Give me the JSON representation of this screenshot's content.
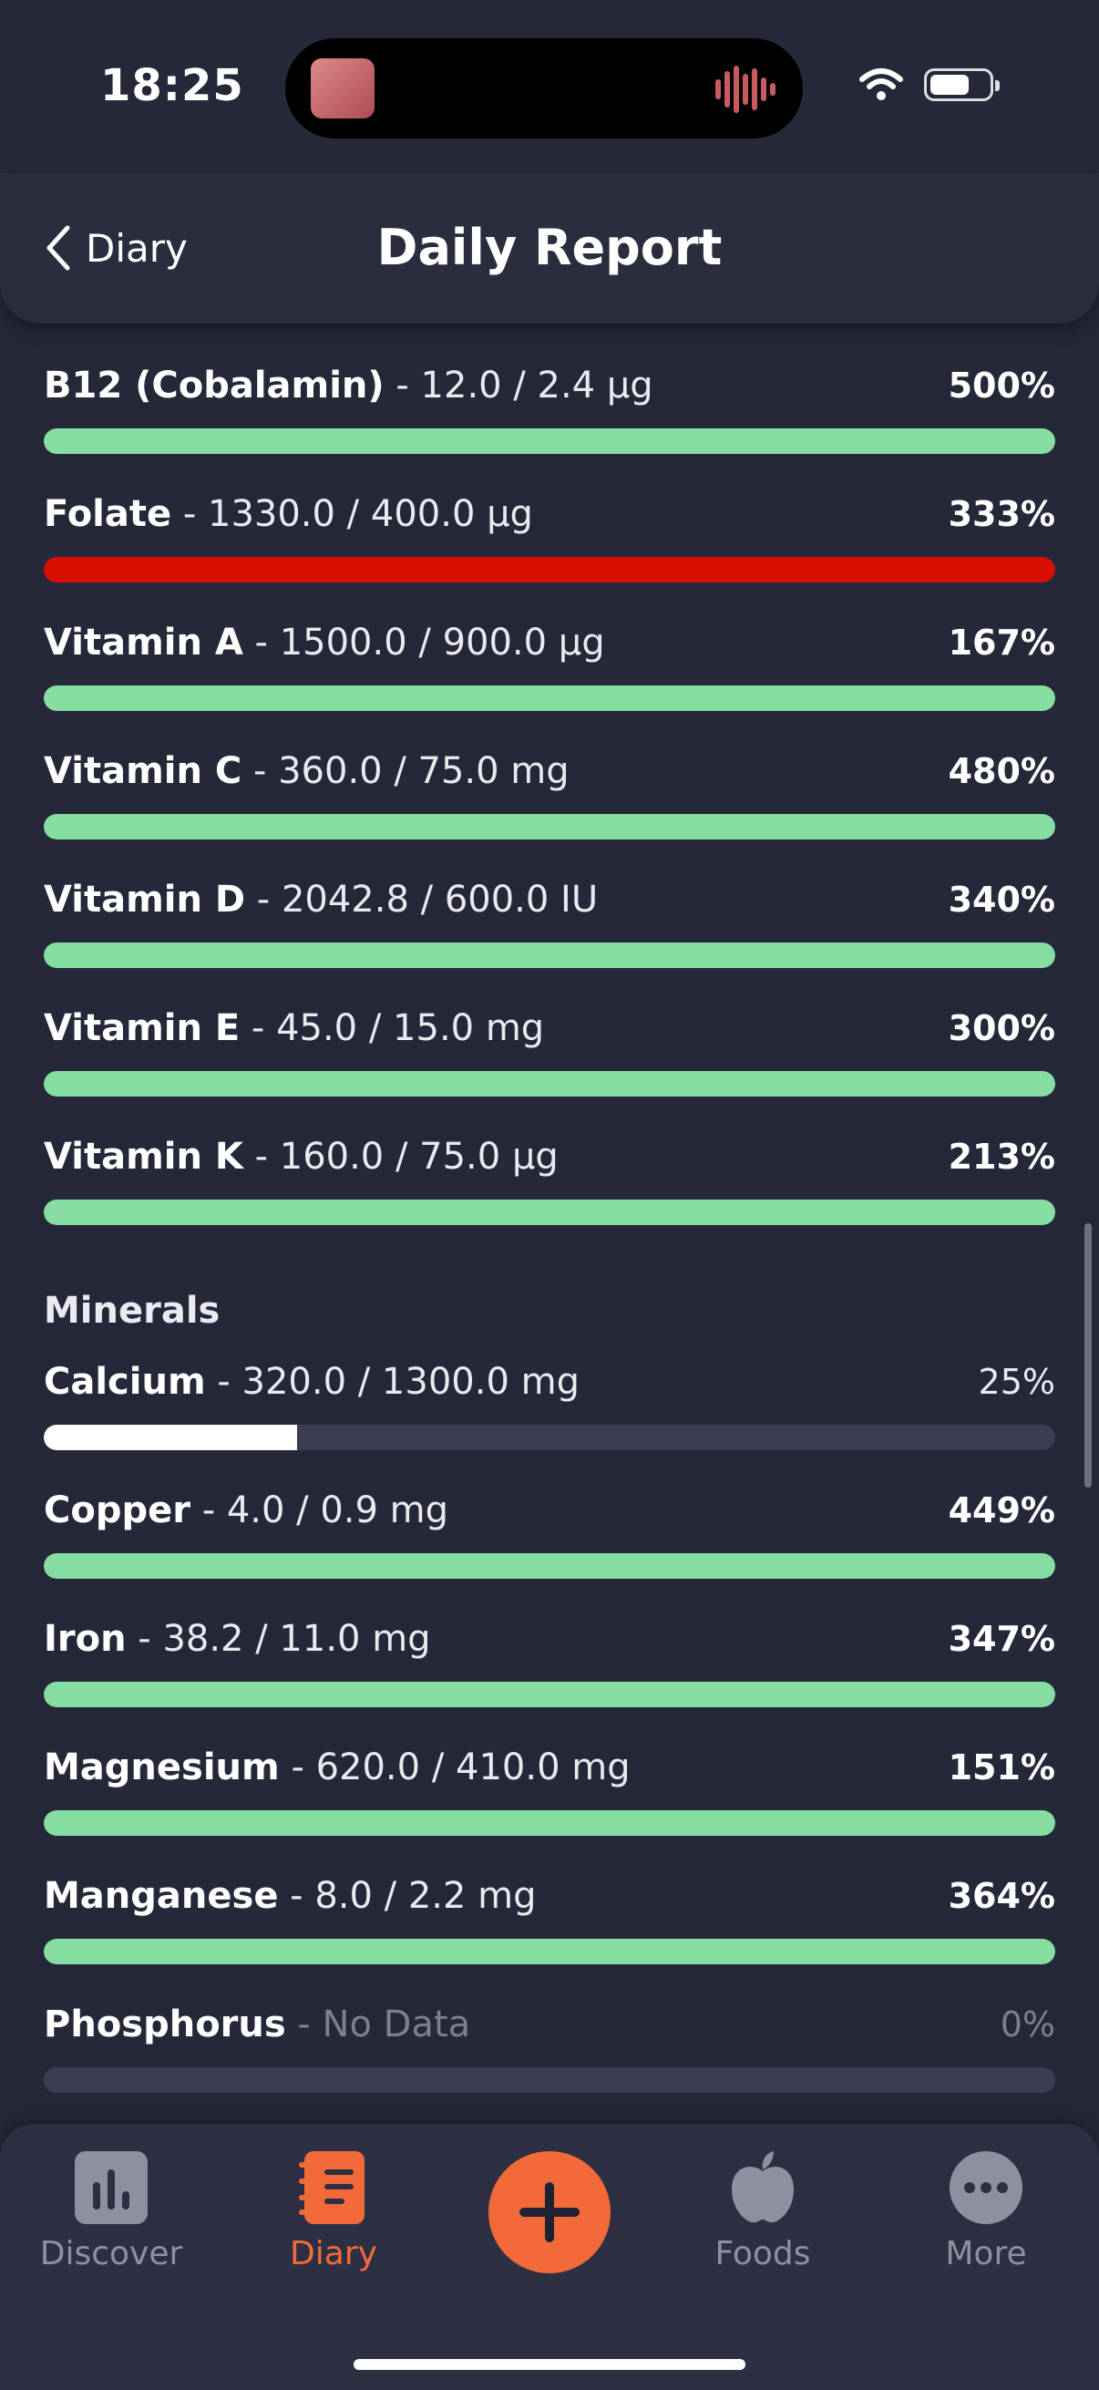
{
  "status_bar": {
    "time": "18:25"
  },
  "header": {
    "back_label": "Diary",
    "title": "Daily Report"
  },
  "vitamins": [
    {
      "name": "B12 (Cobalamin)",
      "detail": "- 12.0 / 2.4 µg",
      "percent_text": "500%",
      "fill_fraction": 1.0,
      "status_color": "#86DDA1"
    },
    {
      "name": "Folate",
      "detail": "- 1330.0 / 400.0 µg",
      "percent_text": "333%",
      "fill_fraction": 1.0,
      "status_color": "#D80F00"
    },
    {
      "name": "Vitamin A",
      "detail": "- 1500.0 / 900.0 µg",
      "percent_text": "167%",
      "fill_fraction": 1.0,
      "status_color": "#86DDA1"
    },
    {
      "name": "Vitamin C",
      "detail": "- 360.0 / 75.0 mg",
      "percent_text": "480%",
      "fill_fraction": 1.0,
      "status_color": "#86DDA1"
    },
    {
      "name": "Vitamin D",
      "detail": "- 2042.8 / 600.0 IU",
      "percent_text": "340%",
      "fill_fraction": 1.0,
      "status_color": "#86DDA1"
    },
    {
      "name": "Vitamin E",
      "detail": "- 45.0 / 15.0 mg",
      "percent_text": "300%",
      "fill_fraction": 1.0,
      "status_color": "#86DDA1"
    },
    {
      "name": "Vitamin K",
      "detail": "- 160.0 / 75.0 µg",
      "percent_text": "213%",
      "fill_fraction": 1.0,
      "status_color": "#86DDA1"
    }
  ],
  "minerals": {
    "section_title": "Minerals",
    "items": [
      {
        "name": "Calcium",
        "detail": "- 320.0 / 1300.0 mg",
        "percent_text": "25%",
        "fill_fraction": 0.25,
        "status_color": "#FFFFFF"
      },
      {
        "name": "Copper",
        "detail": "- 4.0 / 0.9 mg",
        "percent_text": "449%",
        "fill_fraction": 1.0,
        "status_color": "#86DDA1"
      },
      {
        "name": "Iron",
        "detail": "- 38.2 / 11.0 mg",
        "percent_text": "347%",
        "fill_fraction": 1.0,
        "status_color": "#86DDA1"
      },
      {
        "name": "Magnesium",
        "detail": "- 620.0 / 410.0 mg",
        "percent_text": "151%",
        "fill_fraction": 1.0,
        "status_color": "#86DDA1"
      },
      {
        "name": "Manganese",
        "detail": "- 8.0 / 2.2 mg",
        "percent_text": "364%",
        "fill_fraction": 1.0,
        "status_color": "#86DDA1"
      },
      {
        "name": "Phosphorus",
        "detail": "- No Data",
        "percent_text": "0%",
        "fill_fraction": 0.0,
        "status_color": "#3B3E50"
      }
    ]
  },
  "tab_bar": {
    "tabs": [
      {
        "label": "Discover",
        "icon": "bar-chart-icon",
        "active": false
      },
      {
        "label": "Diary",
        "icon": "notebook-icon",
        "active": true
      },
      {
        "label": "Foods",
        "icon": "apple-icon",
        "active": false
      },
      {
        "label": "More",
        "icon": "more-dots-icon",
        "active": false
      }
    ],
    "add_icon": "plus-icon"
  },
  "colors": {
    "accent": "#F26A3A",
    "background": "#252838",
    "good": "#86DDA1",
    "excess": "#D80F00"
  }
}
